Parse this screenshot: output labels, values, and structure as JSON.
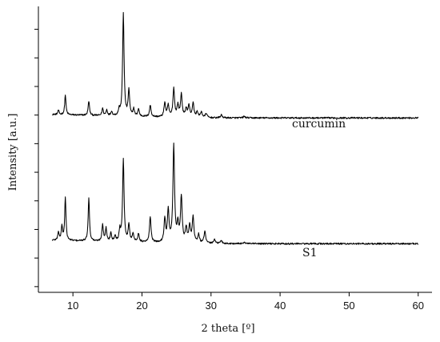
{
  "chart_data": {
    "type": "line",
    "xlabel": "2 theta [º]",
    "ylabel": "Intensity [a.u.]",
    "xlim": [
      5,
      62
    ],
    "ylim": [
      0,
      100
    ],
    "xticks": [
      10,
      20,
      30,
      40,
      50,
      60
    ],
    "xtick_labels": [
      "10",
      "20",
      "30",
      "40",
      "50",
      "60"
    ],
    "y_ticks_labeled": false,
    "grid": false,
    "legend": "none",
    "colors": {
      "axis": "#000000",
      "line": "#000000"
    },
    "series": [
      {
        "name": "curcumin",
        "baseline": 61,
        "x_range": [
          7,
          60
        ],
        "peaks": [
          [
            7.9,
            1.5
          ],
          [
            8.9,
            7
          ],
          [
            12.3,
            5
          ],
          [
            14.3,
            2.5
          ],
          [
            14.9,
            2
          ],
          [
            15.6,
            1.5
          ],
          [
            16.7,
            2
          ],
          [
            17.3,
            36
          ],
          [
            18.1,
            9
          ],
          [
            18.8,
            2.5
          ],
          [
            19.5,
            2.5
          ],
          [
            21.2,
            4
          ],
          [
            23.3,
            5
          ],
          [
            23.8,
            4
          ],
          [
            24.6,
            10
          ],
          [
            25.2,
            4
          ],
          [
            25.7,
            8
          ],
          [
            26.4,
            3
          ],
          [
            26.8,
            4
          ],
          [
            27.4,
            5
          ],
          [
            28.0,
            2
          ],
          [
            28.6,
            2
          ],
          [
            29.3,
            1.5
          ],
          [
            31.5,
            1
          ],
          [
            34.8,
            0.5
          ]
        ]
      },
      {
        "name": "S1",
        "baseline": 17,
        "x_range": [
          7,
          60
        ],
        "peaks": [
          [
            7.9,
            3
          ],
          [
            8.4,
            5
          ],
          [
            8.9,
            15
          ],
          [
            12.3,
            15
          ],
          [
            14.3,
            6
          ],
          [
            14.8,
            4.5
          ],
          [
            15.5,
            3
          ],
          [
            16.1,
            2
          ],
          [
            16.8,
            4
          ],
          [
            17.3,
            29
          ],
          [
            18.1,
            6
          ],
          [
            18.7,
            3
          ],
          [
            19.5,
            3
          ],
          [
            21.2,
            9
          ],
          [
            23.3,
            8
          ],
          [
            23.8,
            11
          ],
          [
            24.6,
            34
          ],
          [
            25.2,
            6
          ],
          [
            25.7,
            16
          ],
          [
            26.4,
            5
          ],
          [
            26.9,
            6
          ],
          [
            27.4,
            9
          ],
          [
            28.2,
            3
          ],
          [
            29.1,
            4
          ],
          [
            30.5,
            1.5
          ],
          [
            31.5,
            1
          ],
          [
            34.8,
            0.5
          ]
        ]
      }
    ]
  }
}
